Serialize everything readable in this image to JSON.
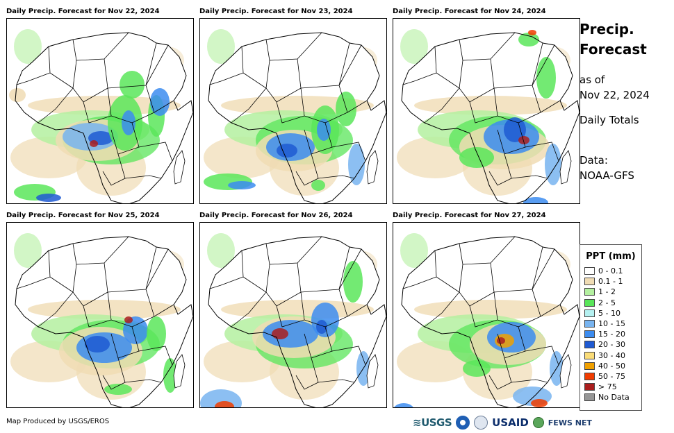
{
  "panels": [
    {
      "title": "Daily Precip. Forecast for Nov 22, 2024"
    },
    {
      "title": "Daily Precip. Forecast for Nov 23, 2024"
    },
    {
      "title": "Daily Precip. Forecast for Nov 24, 2024"
    },
    {
      "title": "Daily Precip. Forecast for Nov 25, 2024"
    },
    {
      "title": "Daily Precip. Forecast for Nov 26, 2024"
    },
    {
      "title": "Daily Precip. Forecast for Nov 27, 2024"
    }
  ],
  "info": {
    "title_line1": "Precip.",
    "title_line2": "Forecast",
    "as_of_label": "as of",
    "as_of_date": "Nov 22, 2024",
    "totals": "Daily Totals",
    "data_label": "Data:",
    "data_source": "NOAA-GFS"
  },
  "legend": {
    "title": "PPT (mm)",
    "items": [
      {
        "label": "0 - 0.1",
        "color": "#ffffff"
      },
      {
        "label": "0.1 - 1",
        "color": "#f0dcb4"
      },
      {
        "label": "1 - 2",
        "color": "#b4f0a0"
      },
      {
        "label": "2 - 5",
        "color": "#5ae65a"
      },
      {
        "label": "5 - 10",
        "color": "#b4f0f0"
      },
      {
        "label": "10 - 15",
        "color": "#78b4f0"
      },
      {
        "label": "15 - 20",
        "color": "#3c8cf0"
      },
      {
        "label": "20 - 30",
        "color": "#1e5ad2"
      },
      {
        "label": "30 - 40",
        "color": "#fadc78"
      },
      {
        "label": "40 - 50",
        "color": "#f0a000"
      },
      {
        "label": "50 - 75",
        "color": "#f03c00"
      },
      {
        "label": "> 75",
        "color": "#aa1e1e"
      },
      {
        "label": "No Data",
        "color": "#969696"
      }
    ]
  },
  "credit": "Map Produced by USGS/EROS",
  "logos": {
    "usgs": "≋USGS",
    "usaid": "USAID",
    "fews": "FEWS NET"
  }
}
